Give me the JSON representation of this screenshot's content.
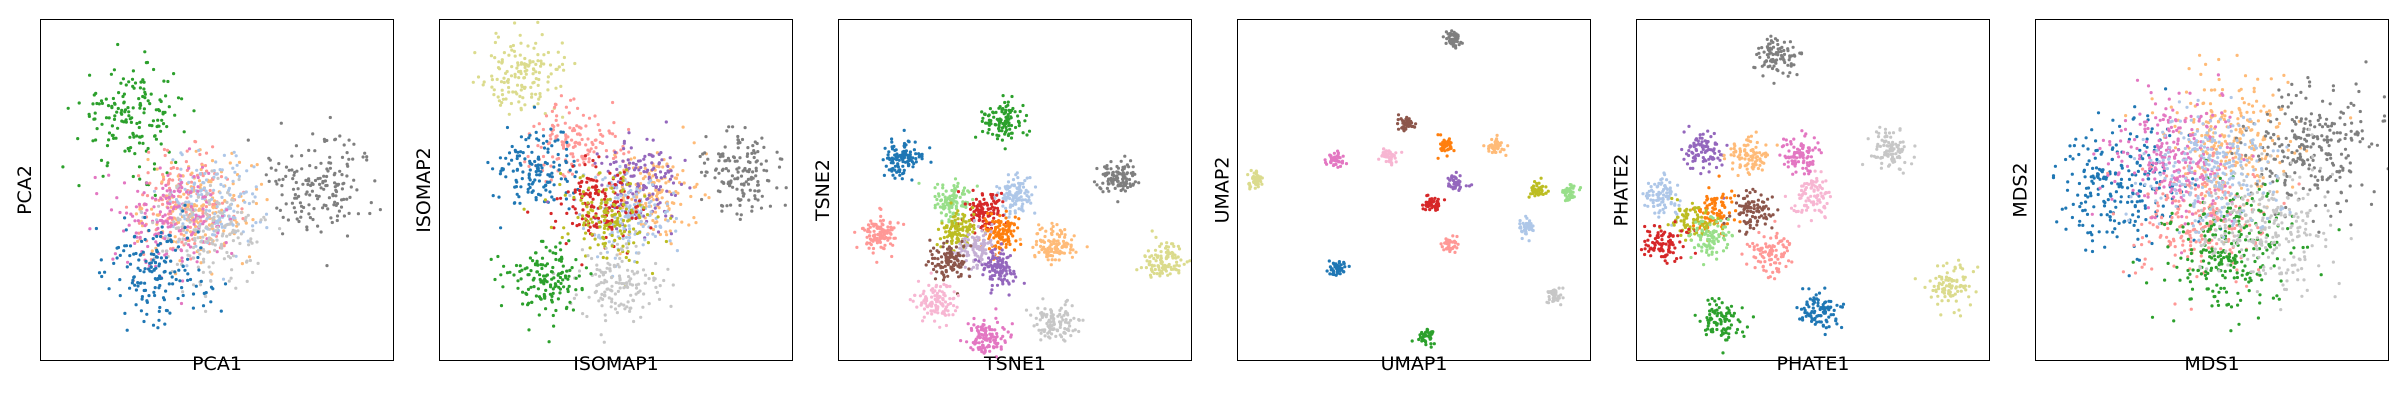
{
  "chart_data": [
    {
      "type": "scatter",
      "xlabel": "PCA1",
      "ylabel": "PCA2",
      "xlim": [
        0,
        1
      ],
      "ylim": [
        0,
        1
      ],
      "grid": false,
      "series": [
        {
          "color": "#2ca02c",
          "x": [
            0.26
          ],
          "y": [
            0.72
          ]
        },
        {
          "color": "#ff9896",
          "x": [
            0.41
          ],
          "y": [
            0.45
          ]
        },
        {
          "color": "#ffbb78",
          "x": [
            0.45
          ],
          "y": [
            0.45
          ]
        },
        {
          "color": "#aec7e8",
          "x": [
            0.48
          ],
          "y": [
            0.46
          ]
        },
        {
          "color": "#e377c2",
          "x": [
            0.38
          ],
          "y": [
            0.42
          ]
        },
        {
          "color": "#c7c7c7",
          "x": [
            0.49
          ],
          "y": [
            0.37
          ]
        },
        {
          "color": "#1f77b4",
          "x": [
            0.33
          ],
          "y": [
            0.26
          ]
        },
        {
          "color": "#7f7f7f",
          "x": [
            0.79
          ],
          "y": [
            0.52
          ]
        }
      ]
    },
    {
      "type": "scatter",
      "xlabel": "ISOMAP1",
      "ylabel": "ISOMAP2",
      "xlim": [
        0,
        1
      ],
      "ylim": [
        0,
        1
      ],
      "grid": false,
      "series": [
        {
          "color": "#dbdb8d",
          "x": [
            0.24
          ],
          "y": [
            0.83
          ]
        },
        {
          "color": "#ff9896",
          "x": [
            0.39
          ],
          "y": [
            0.64
          ]
        },
        {
          "color": "#1f77b4",
          "x": [
            0.27
          ],
          "y": [
            0.55
          ]
        },
        {
          "color": "#ffbb78",
          "x": [
            0.61
          ],
          "y": [
            0.49
          ]
        },
        {
          "color": "#9467bd",
          "x": [
            0.57
          ],
          "y": [
            0.52
          ]
        },
        {
          "color": "#aec7e8",
          "x": [
            0.52
          ],
          "y": [
            0.42
          ]
        },
        {
          "color": "#d62728",
          "x": [
            0.45
          ],
          "y": [
            0.45
          ]
        },
        {
          "color": "#bcbd22",
          "x": [
            0.48
          ],
          "y": [
            0.42
          ]
        },
        {
          "color": "#c7c7c7",
          "x": [
            0.51
          ],
          "y": [
            0.23
          ]
        },
        {
          "color": "#2ca02c",
          "x": [
            0.3
          ],
          "y": [
            0.24
          ]
        },
        {
          "color": "#7f7f7f",
          "x": [
            0.85
          ],
          "y": [
            0.55
          ]
        }
      ]
    },
    {
      "type": "scatter",
      "xlabel": "TSNE1",
      "ylabel": "TSNE2",
      "xlim": [
        0,
        1
      ],
      "ylim": [
        0,
        1
      ],
      "grid": false,
      "series": [
        {
          "color": "#2ca02c",
          "x": [
            0.46
          ],
          "y": [
            0.7
          ]
        },
        {
          "color": "#1f77b4",
          "x": [
            0.18
          ],
          "y": [
            0.59
          ]
        },
        {
          "color": "#7f7f7f",
          "x": [
            0.79
          ],
          "y": [
            0.53
          ]
        },
        {
          "color": "#98df8a",
          "x": [
            0.32
          ],
          "y": [
            0.47
          ]
        },
        {
          "color": "#aec7e8",
          "x": [
            0.5
          ],
          "y": [
            0.49
          ]
        },
        {
          "color": "#d62728",
          "x": [
            0.41
          ],
          "y": [
            0.44
          ]
        },
        {
          "color": "#ff9896",
          "x": [
            0.12
          ],
          "y": [
            0.37
          ]
        },
        {
          "color": "#bcbd22",
          "x": [
            0.34
          ],
          "y": [
            0.38
          ]
        },
        {
          "color": "#ff7f0e",
          "x": [
            0.46
          ],
          "y": [
            0.37
          ]
        },
        {
          "color": "#ffbb78",
          "x": [
            0.61
          ],
          "y": [
            0.34
          ]
        },
        {
          "color": "#c5b0d5",
          "x": [
            0.39
          ],
          "y": [
            0.33
          ]
        },
        {
          "color": "#8c564b",
          "x": [
            0.31
          ],
          "y": [
            0.29
          ]
        },
        {
          "color": "#9467bd",
          "x": [
            0.45
          ],
          "y": [
            0.27
          ]
        },
        {
          "color": "#dbdb8d",
          "x": [
            0.92
          ],
          "y": [
            0.29
          ]
        },
        {
          "color": "#f7b6d2",
          "x": [
            0.28
          ],
          "y": [
            0.18
          ]
        },
        {
          "color": "#c7c7c7",
          "x": [
            0.61
          ],
          "y": [
            0.11
          ]
        },
        {
          "color": "#e377c2",
          "x": [
            0.42
          ],
          "y": [
            0.07
          ]
        }
      ]
    },
    {
      "type": "scatter",
      "xlabel": "UMAP1",
      "ylabel": "UMAP2",
      "xlim": [
        0,
        1
      ],
      "ylim": [
        0,
        1
      ],
      "grid": false,
      "series": [
        {
          "color": "#7f7f7f",
          "x": [
            0.61
          ],
          "y": [
            0.94
          ]
        },
        {
          "color": "#8c564b",
          "x": [
            0.48
          ],
          "y": [
            0.69
          ]
        },
        {
          "color": "#ff7f0e",
          "x": [
            0.59
          ],
          "y": [
            0.63
          ]
        },
        {
          "color": "#ffbb78",
          "x": [
            0.73
          ],
          "y": [
            0.63
          ]
        },
        {
          "color": "#e377c2",
          "x": [
            0.28
          ],
          "y": [
            0.59
          ]
        },
        {
          "color": "#f7b6d2",
          "x": [
            0.43
          ],
          "y": [
            0.6
          ]
        },
        {
          "color": "#dbdb8d",
          "x": [
            0.05
          ],
          "y": [
            0.53
          ]
        },
        {
          "color": "#9467bd",
          "x": [
            0.62
          ],
          "y": [
            0.52
          ]
        },
        {
          "color": "#bcbd22",
          "x": [
            0.85
          ],
          "y": [
            0.5
          ]
        },
        {
          "color": "#98df8a",
          "x": [
            0.94
          ],
          "y": [
            0.49
          ]
        },
        {
          "color": "#d62728",
          "x": [
            0.55
          ],
          "y": [
            0.46
          ]
        },
        {
          "color": "#aec7e8",
          "x": [
            0.82
          ],
          "y": [
            0.39
          ]
        },
        {
          "color": "#ff9896",
          "x": [
            0.6
          ],
          "y": [
            0.34
          ]
        },
        {
          "color": "#1f77b4",
          "x": [
            0.28
          ],
          "y": [
            0.27
          ]
        },
        {
          "color": "#c7c7c7",
          "x": [
            0.9
          ],
          "y": [
            0.19
          ]
        },
        {
          "color": "#2ca02c",
          "x": [
            0.54
          ],
          "y": [
            0.07
          ]
        }
      ]
    },
    {
      "type": "scatter",
      "xlabel": "PHATE1",
      "ylabel": "PHATE2",
      "xlim": [
        0,
        1
      ],
      "ylim": [
        0,
        1
      ],
      "grid": false,
      "series": [
        {
          "color": "#7f7f7f",
          "x": [
            0.4
          ],
          "y": [
            0.89
          ]
        },
        {
          "color": "#c7c7c7",
          "x": [
            0.72
          ],
          "y": [
            0.62
          ]
        },
        {
          "color": "#9467bd",
          "x": [
            0.19
          ],
          "y": [
            0.61
          ]
        },
        {
          "color": "#ffbb78",
          "x": [
            0.32
          ],
          "y": [
            0.6
          ]
        },
        {
          "color": "#e377c2",
          "x": [
            0.46
          ],
          "y": [
            0.6
          ]
        },
        {
          "color": "#aec7e8",
          "x": [
            0.07
          ],
          "y": [
            0.48
          ]
        },
        {
          "color": "#ff7f0e",
          "x": [
            0.22
          ],
          "y": [
            0.44
          ]
        },
        {
          "color": "#8c564b",
          "x": [
            0.33
          ],
          "y": [
            0.44
          ]
        },
        {
          "color": "#f7b6d2",
          "x": [
            0.5
          ],
          "y": [
            0.48
          ]
        },
        {
          "color": "#bcbd22",
          "x": [
            0.16
          ],
          "y": [
            0.41
          ]
        },
        {
          "color": "#d62728",
          "x": [
            0.08
          ],
          "y": [
            0.35
          ]
        },
        {
          "color": "#98df8a",
          "x": [
            0.21
          ],
          "y": [
            0.36
          ]
        },
        {
          "color": "#ff9896",
          "x": [
            0.38
          ],
          "y": [
            0.31
          ]
        },
        {
          "color": "#dbdb8d",
          "x": [
            0.89
          ],
          "y": [
            0.22
          ]
        },
        {
          "color": "#2ca02c",
          "x": [
            0.24
          ],
          "y": [
            0.12
          ]
        },
        {
          "color": "#1f77b4",
          "x": [
            0.52
          ],
          "y": [
            0.14
          ]
        }
      ]
    },
    {
      "type": "scatter",
      "xlabel": "MDS1",
      "ylabel": "MDS2",
      "xlim": [
        0,
        1
      ],
      "ylim": [
        0,
        1
      ],
      "grid": false,
      "series": [
        {
          "color": "#ffbb78",
          "x": [
            0.55
          ],
          "y": [
            0.66
          ]
        },
        {
          "color": "#7f7f7f",
          "x": [
            0.78
          ],
          "y": [
            0.62
          ]
        },
        {
          "color": "#1f77b4",
          "x": [
            0.25
          ],
          "y": [
            0.52
          ]
        },
        {
          "color": "#ff9896",
          "x": [
            0.47
          ],
          "y": [
            0.42
          ]
        },
        {
          "color": "#2ca02c",
          "x": [
            0.55
          ],
          "y": [
            0.32
          ]
        },
        {
          "color": "#e377c2",
          "x": [
            0.4
          ],
          "y": [
            0.6
          ]
        },
        {
          "color": "#c7c7c7",
          "x": [
            0.65
          ],
          "y": [
            0.4
          ]
        },
        {
          "color": "#aec7e8",
          "x": [
            0.5
          ],
          "y": [
            0.55
          ]
        }
      ]
    }
  ]
}
